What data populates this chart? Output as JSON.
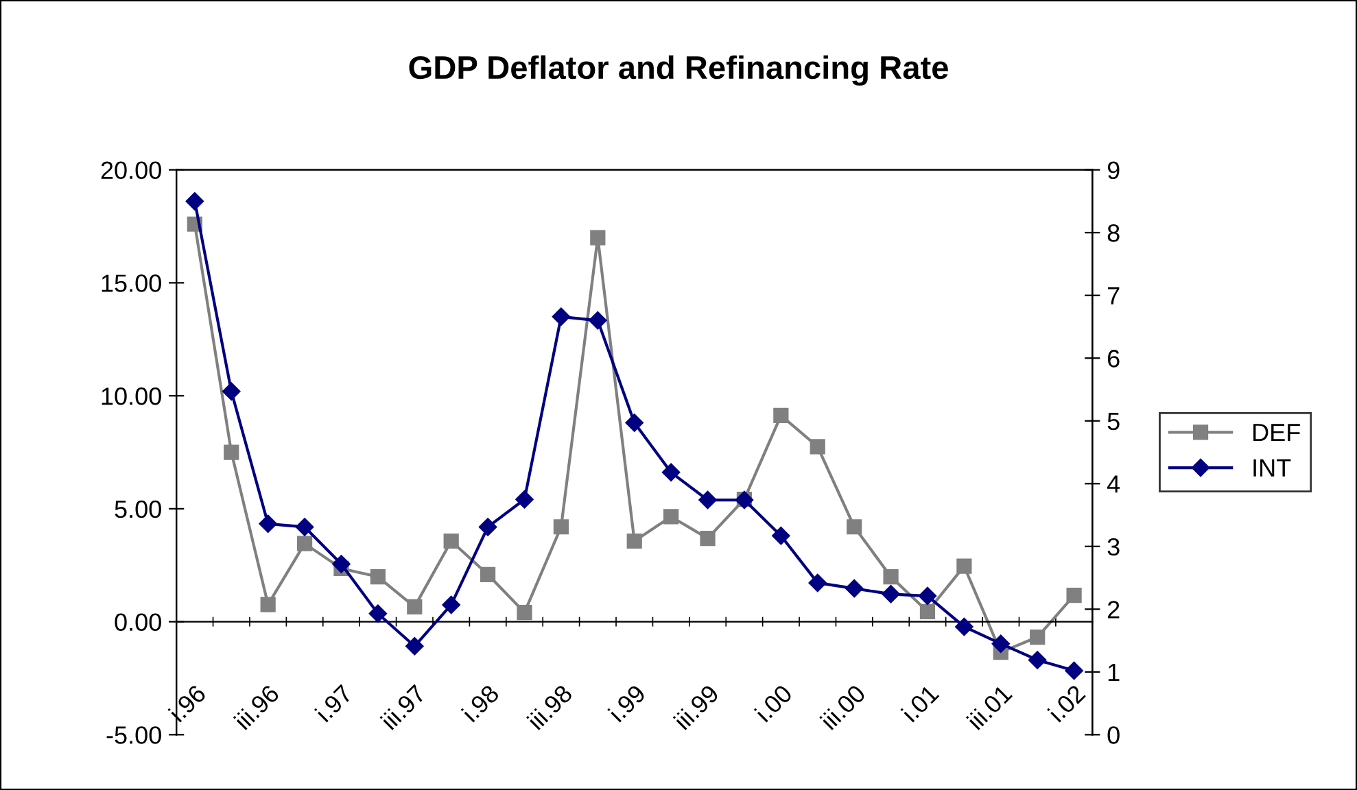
{
  "chart_data": {
    "type": "line",
    "title": "GDP Deflator and Refinancing Rate",
    "categories": [
      "i.96",
      null,
      "iii.96",
      null,
      "i.97",
      null,
      "iii.97",
      null,
      "i.98",
      null,
      "iii.98",
      null,
      "i.99",
      null,
      "iii.99",
      null,
      "i.00",
      null,
      "iii.00",
      null,
      "i.01",
      null,
      "iii.01",
      null,
      "i.02"
    ],
    "series": [
      {
        "name": "DEF",
        "color": "#808080",
        "marker": "square",
        "values": [
          17.6,
          7.5,
          0.76,
          3.46,
          2.36,
          1.99,
          0.66,
          3.57,
          2.09,
          0.41,
          4.2,
          17.0,
          3.57,
          4.65,
          3.69,
          5.42,
          9.13,
          7.75,
          4.2,
          1.99,
          0.45,
          2.46,
          -1.35,
          -0.68,
          1.17
        ]
      },
      {
        "name": "INT",
        "color": "#000080",
        "marker": "diamond",
        "axis": "y2",
        "values": [
          8.5,
          5.47,
          3.36,
          3.31,
          2.72,
          1.93,
          1.41,
          2.07,
          3.31,
          3.75,
          6.66,
          6.6,
          4.97,
          4.18,
          3.74,
          3.74,
          3.17,
          2.42,
          2.33,
          2.24,
          2.21,
          1.72,
          1.45,
          1.19,
          1.02
        ]
      }
    ],
    "ylim": [
      -5,
      20
    ],
    "yticks": [
      {
        "value": -5,
        "label": "-5.00"
      },
      {
        "value": 0,
        "label": "0.00"
      },
      {
        "value": 5,
        "label": "5.00"
      },
      {
        "value": 10,
        "label": "10.00"
      },
      {
        "value": 15,
        "label": "15.00"
      },
      {
        "value": 20,
        "label": "20.00"
      }
    ],
    "y2lim": [
      0,
      9
    ],
    "y2ticks": [
      0,
      1,
      2,
      3,
      4,
      5,
      6,
      7,
      8,
      9
    ],
    "legend": "right",
    "grid": false,
    "line_style": "solid"
  }
}
